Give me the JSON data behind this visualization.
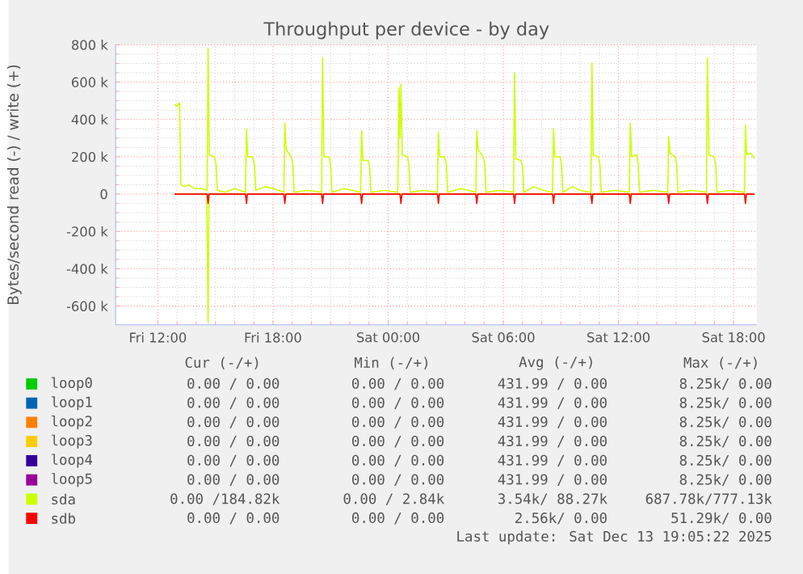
{
  "chart_data": {
    "type": "line",
    "title": "Throughput per device - by day",
    "ylabel": "Bytes/second read (-) / write (+)",
    "xlim": [
      "2025-12-12T09:48",
      "2025-12-13T19:12"
    ],
    "ylim": [
      -700000,
      800000
    ],
    "xticks": [
      {
        "value": "2025-12-12T12:00",
        "label": "Fri 12:00"
      },
      {
        "value": "2025-12-12T18:00",
        "label": "Fri 18:00"
      },
      {
        "value": "2025-12-13T00:00",
        "label": "Sat 00:00"
      },
      {
        "value": "2025-12-13T06:00",
        "label": "Sat 06:00"
      },
      {
        "value": "2025-12-13T12:00",
        "label": "Sat 12:00"
      },
      {
        "value": "2025-12-13T18:00",
        "label": "Sat 18:00"
      }
    ],
    "yticks": [
      {
        "value": -600000,
        "label": "-600 k"
      },
      {
        "value": -400000,
        "label": "-400 k"
      },
      {
        "value": -200000,
        "label": "-200 k"
      },
      0,
      {
        "value": 200000,
        "label": "200 k"
      },
      {
        "value": 400000,
        "label": "400 k"
      },
      {
        "value": 600000,
        "label": "600 k"
      },
      {
        "value": 800000,
        "label": "800 k"
      }
    ],
    "grid": true,
    "legend": "bottom",
    "marker": "none",
    "line_style": "solid",
    "series": [
      {
        "name": "loop0",
        "color": "#00cc00"
      },
      {
        "name": "loop1",
        "color": "#0066b3"
      },
      {
        "name": "loop2",
        "color": "#ff8000"
      },
      {
        "name": "loop3",
        "color": "#ffcc00"
      },
      {
        "name": "loop4",
        "color": "#330099"
      },
      {
        "name": "loop5",
        "color": "#990099"
      },
      {
        "name": "sda",
        "color": "#ccff00",
        "x": [
          "2025-12-12T12:52",
          "2025-12-12T13:00",
          "2025-12-12T13:08",
          "2025-12-12T13:12",
          "2025-12-12T13:24",
          "2025-12-12T13:36",
          "2025-12-12T13:54",
          "2025-12-12T14:18",
          "2025-12-12T14:34",
          "2025-12-12T14:37",
          "2025-12-12T14:41",
          "2025-12-12T14:57",
          "2025-12-12T15:02",
          "2025-12-12T15:06",
          "2025-12-12T15:30",
          "2025-12-12T16:00",
          "2025-12-12T16:34",
          "2025-12-12T16:37",
          "2025-12-12T16:41",
          "2025-12-12T16:57",
          "2025-12-12T17:02",
          "2025-12-12T17:06",
          "2025-12-12T17:36",
          "2025-12-12T18:00",
          "2025-12-12T18:34",
          "2025-12-12T18:37",
          "2025-12-12T18:41",
          "2025-12-12T18:57",
          "2025-12-12T19:02",
          "2025-12-12T19:06",
          "2025-12-12T19:48",
          "2025-12-12T20:32",
          "2025-12-12T20:35",
          "2025-12-12T20:39",
          "2025-12-12T20:55",
          "2025-12-12T21:00",
          "2025-12-12T21:04",
          "2025-12-12T21:42",
          "2025-12-12T22:34",
          "2025-12-12T22:37",
          "2025-12-12T22:41",
          "2025-12-12T22:57",
          "2025-12-12T23:02",
          "2025-12-12T23:06",
          "2025-12-12T23:48",
          "2025-12-13T00:30",
          "2025-12-13T00:34",
          "2025-12-13T00:37",
          "2025-12-13T00:40",
          "2025-12-13T00:44",
          "2025-12-13T01:00",
          "2025-12-13T01:05",
          "2025-12-13T01:09",
          "2025-12-13T01:48",
          "2025-12-13T02:34",
          "2025-12-13T02:37",
          "2025-12-13T02:41",
          "2025-12-13T02:57",
          "2025-12-13T03:02",
          "2025-12-13T03:06",
          "2025-12-13T03:48",
          "2025-12-13T04:34",
          "2025-12-13T04:37",
          "2025-12-13T04:41",
          "2025-12-13T04:57",
          "2025-12-13T05:02",
          "2025-12-13T05:06",
          "2025-12-13T05:48",
          "2025-12-13T06:32",
          "2025-12-13T06:35",
          "2025-12-13T06:39",
          "2025-12-13T06:55",
          "2025-12-13T07:00",
          "2025-12-13T07:04",
          "2025-12-13T07:36",
          "2025-12-13T08:06",
          "2025-12-13T08:34",
          "2025-12-13T08:37",
          "2025-12-13T08:41",
          "2025-12-13T08:57",
          "2025-12-13T09:02",
          "2025-12-13T09:06",
          "2025-12-13T09:36",
          "2025-12-13T10:00",
          "2025-12-13T10:34",
          "2025-12-13T10:37",
          "2025-12-13T10:41",
          "2025-12-13T10:57",
          "2025-12-13T11:02",
          "2025-12-13T11:06",
          "2025-12-13T11:48",
          "2025-12-13T12:34",
          "2025-12-13T12:37",
          "2025-12-13T12:41",
          "2025-12-13T12:57",
          "2025-12-13T13:02",
          "2025-12-13T13:06",
          "2025-12-13T13:48",
          "2025-12-13T14:34",
          "2025-12-13T14:37",
          "2025-12-13T14:41",
          "2025-12-13T14:57",
          "2025-12-13T15:02",
          "2025-12-13T15:06",
          "2025-12-13T15:48",
          "2025-12-13T16:35",
          "2025-12-13T16:38",
          "2025-12-13T16:43",
          "2025-12-13T16:59",
          "2025-12-13T17:04",
          "2025-12-13T17:08",
          "2025-12-13T17:48",
          "2025-12-13T18:34",
          "2025-12-13T18:37",
          "2025-12-13T18:41",
          "2025-12-13T18:54",
          "2025-12-13T19:05"
        ],
        "values": [
          480000,
          470000,
          490000,
          50000,
          40000,
          50000,
          30000,
          30000,
          20000,
          780000,
          210000,
          200000,
          160000,
          20000,
          10000,
          30000,
          10000,
          350000,
          200000,
          200000,
          160000,
          20000,
          40000,
          30000,
          10000,
          380000,
          240000,
          200000,
          160000,
          10000,
          20000,
          10000,
          730000,
          200000,
          200000,
          160000,
          10000,
          30000,
          10000,
          340000,
          180000,
          180000,
          150000,
          10000,
          20000,
          10000,
          570000,
          300000,
          590000,
          210000,
          200000,
          160000,
          10000,
          20000,
          10000,
          330000,
          200000,
          200000,
          160000,
          10000,
          30000,
          10000,
          340000,
          240000,
          200000,
          160000,
          10000,
          20000,
          10000,
          650000,
          190000,
          180000,
          150000,
          10000,
          40000,
          20000,
          10000,
          350000,
          200000,
          200000,
          160000,
          10000,
          40000,
          20000,
          10000,
          700000,
          210000,
          200000,
          160000,
          10000,
          20000,
          10000,
          380000,
          200000,
          210000,
          160000,
          10000,
          20000,
          10000,
          310000,
          220000,
          200000,
          160000,
          10000,
          20000,
          10000,
          730000,
          210000,
          200000,
          160000,
          10000,
          20000,
          10000,
          370000,
          210000,
          220000,
          190000
        ]
      },
      {
        "color": "#ccff00",
        "x": [
          "2025-12-12T12:52",
          "2025-12-12T14:33",
          "2025-12-12T14:37",
          "2025-12-12T14:40",
          "2025-12-13T19:05"
        ],
        "values": [
          0,
          0,
          -690000,
          0,
          0
        ]
      },
      {
        "name": "sdb",
        "color": "#ff0000",
        "x": [
          "2025-12-12T12:52",
          "2025-12-12T14:34",
          "2025-12-12T14:37",
          "2025-12-12T14:40",
          "2025-12-12T16:34",
          "2025-12-12T16:37",
          "2025-12-12T16:40",
          "2025-12-12T18:34",
          "2025-12-12T18:37",
          "2025-12-12T18:40",
          "2025-12-12T20:32",
          "2025-12-12T20:35",
          "2025-12-12T20:38",
          "2025-12-12T22:34",
          "2025-12-12T22:37",
          "2025-12-12T22:40",
          "2025-12-13T00:37",
          "2025-12-13T00:40",
          "2025-12-13T00:43",
          "2025-12-13T02:34",
          "2025-12-13T02:37",
          "2025-12-13T02:40",
          "2025-12-13T04:34",
          "2025-12-13T04:37",
          "2025-12-13T04:40",
          "2025-12-13T06:32",
          "2025-12-13T06:35",
          "2025-12-13T06:38",
          "2025-12-13T08:34",
          "2025-12-13T08:37",
          "2025-12-13T08:40",
          "2025-12-13T10:34",
          "2025-12-13T10:37",
          "2025-12-13T10:40",
          "2025-12-13T12:34",
          "2025-12-13T12:37",
          "2025-12-13T12:40",
          "2025-12-13T14:34",
          "2025-12-13T14:37",
          "2025-12-13T14:40",
          "2025-12-13T16:35",
          "2025-12-13T16:38",
          "2025-12-13T16:41",
          "2025-12-13T18:34",
          "2025-12-13T18:37",
          "2025-12-13T18:40",
          "2025-12-13T19:05"
        ],
        "values": [
          0,
          0,
          -50000,
          0,
          0,
          -50000,
          0,
          0,
          -50000,
          0,
          0,
          -50000,
          0,
          0,
          -50000,
          0,
          0,
          -50000,
          0,
          0,
          -50000,
          0,
          0,
          -50000,
          0,
          0,
          -50000,
          0,
          0,
          -50000,
          0,
          0,
          -50000,
          0,
          0,
          -50000,
          0,
          0,
          -50000,
          0,
          0,
          -50000,
          0,
          0,
          -50000,
          0,
          0
        ]
      }
    ],
    "annotations": [
      "Cur (-/+)",
      "Min (-/+)",
      "Avg (-/+)",
      "Max (-/+)",
      "0.00 / 0.00",
      "0.00 / 0.00",
      "431.99 / 0.00",
      "8.25k/ 0.00",
      "0.00 / 0.00",
      "0.00 / 0.00",
      "431.99 / 0.00",
      "8.25k/ 0.00",
      "0.00 / 0.00",
      "0.00 / 0.00",
      "431.99 / 0.00",
      "8.25k/ 0.00",
      "0.00 / 0.00",
      "0.00 / 0.00",
      "431.99 / 0.00",
      "8.25k/ 0.00",
      "0.00 / 0.00",
      "0.00 / 0.00",
      "431.99 / 0.00",
      "8.25k/ 0.00",
      "0.00 / 0.00",
      "0.00 / 0.00",
      "431.99 / 0.00",
      "8.25k/ 0.00",
      "0.00 /184.82k",
      "0.00 / 2.84k",
      "3.54k/ 88.27k",
      "687.78k/777.13k",
      "0.00 / 0.00",
      "0.00 / 0.00",
      "2.56k/ 0.00",
      "51.29k/ 0.00",
      "Last update: Sat Dec 13 19:05:22 2025"
    ]
  }
}
